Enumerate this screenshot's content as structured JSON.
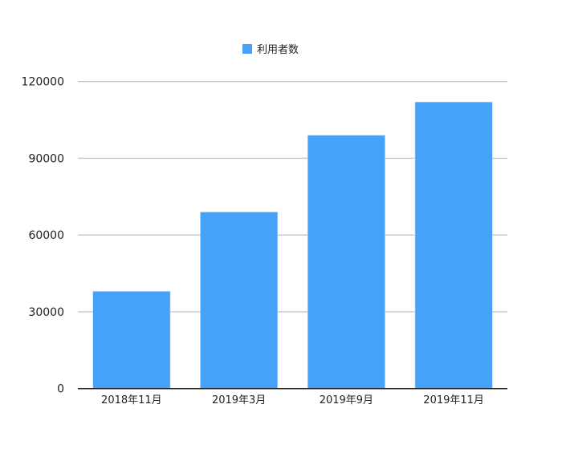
{
  "chart_data": {
    "type": "bar",
    "title": "",
    "xlabel": "",
    "ylabel": "",
    "categories": [
      "2018年11月",
      "2019年3月",
      "2019年9月",
      "2019年11月"
    ],
    "series": [
      {
        "name": "利用者数",
        "values": [
          38000,
          69000,
          99000,
          112000
        ],
        "color": "#46a1f8"
      }
    ],
    "ylim": [
      0,
      120000
    ],
    "yticks": [
      0,
      30000,
      60000,
      90000,
      120000
    ],
    "grid": true,
    "legend": "top-center"
  }
}
